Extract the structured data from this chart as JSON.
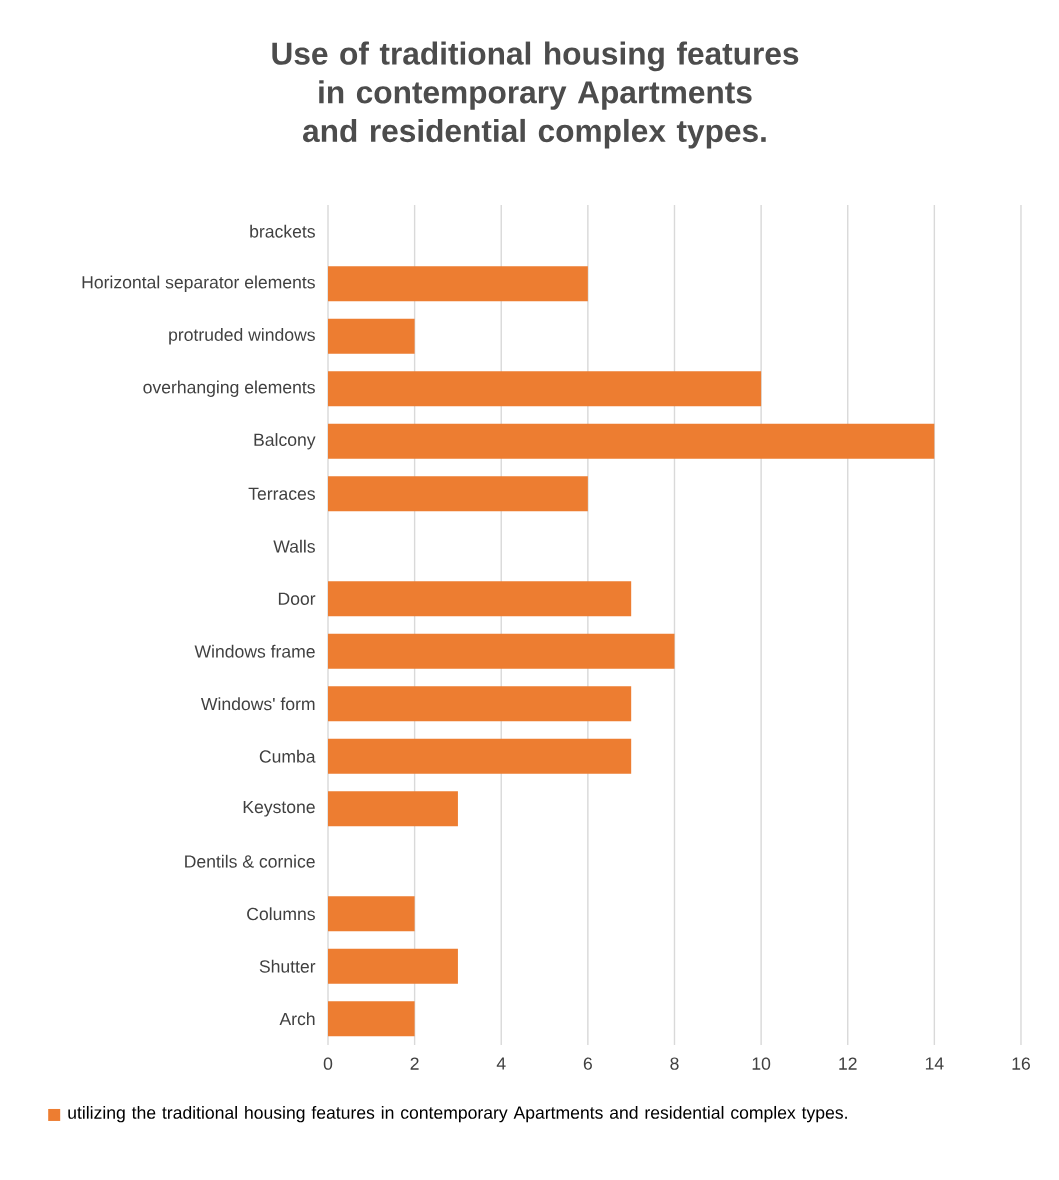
{
  "chart_data": {
    "type": "bar",
    "orientation": "horizontal",
    "title": "Use of traditional housing features in contemporary Apartments and residential complex types.",
    "categories": [
      "brackets",
      "Horizontal separator elements",
      "protruded windows",
      "overhanging elements",
      "Balcony",
      "Terraces",
      "Walls",
      "Door",
      "Windows frame",
      "Windows' form",
      "Cumba",
      "Keystone",
      "Dentils & cornice",
      "Columns",
      "Shutter",
      "Arch"
    ],
    "series": [
      {
        "name": "utilizing the traditional housing features in contemporary Apartments and residential complex types.",
        "color": "#ed7d31",
        "values": [
          0,
          6,
          2,
          10,
          14,
          6,
          0,
          7,
          8,
          7,
          7,
          3,
          0,
          2,
          3,
          2
        ]
      }
    ],
    "xlim": [
      0,
      16
    ],
    "xticks": [
      0,
      2,
      4,
      6,
      8,
      10,
      12,
      14,
      16
    ],
    "grid": "x",
    "legend": "bottom"
  }
}
